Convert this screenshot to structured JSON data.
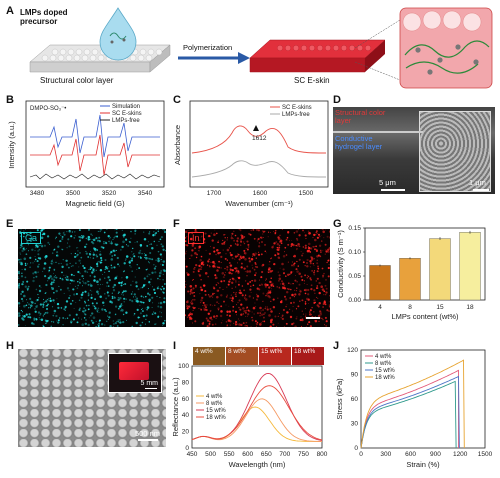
{
  "panels": {
    "A": {
      "letter": "A",
      "precursor_label": "LMPs doped\nprecursor",
      "structural_label": "Structural color layer",
      "arrow_label": "Polymerization",
      "skin_label": "SC E-skin"
    },
    "B": {
      "letter": "B",
      "annotation": "DMPO-SO₃⁻•",
      "ylabel": "Intensity (a.u.)",
      "xlabel": "Magnetic field (G)",
      "legend": [
        "Simulation",
        "SC E-skins",
        "LMPs-free"
      ],
      "xticks": [
        "3480",
        "3500",
        "3520",
        "3540"
      ]
    },
    "C": {
      "letter": "C",
      "ylabel": "Absorbance",
      "xlabel": "Wavenumber (cm⁻¹)",
      "legend": [
        "SC E-skins",
        "LMPs-free"
      ],
      "peak": "1612",
      "xticks": [
        "1700",
        "1600",
        "1500"
      ]
    },
    "D": {
      "letter": "D",
      "layer1": "Structural color\nlayer",
      "layer2": "Conductive\nhydrogel layer",
      "scale1": "5 μm",
      "scale2": "1 μm"
    },
    "E": {
      "letter": "E",
      "element": "Ga"
    },
    "F": {
      "letter": "F",
      "element": "In"
    },
    "G": {
      "letter": "G"
    },
    "H": {
      "letter": "H",
      "scale1": "5 mm",
      "scale2": "500 nm"
    },
    "I": {
      "letter": "I",
      "insets": [
        "4 wt%",
        "8 wt%",
        "15 wt%",
        "18 wt%"
      ],
      "ylabel": "Reflectance (a.u.)",
      "xlabel": "Wavelength (nm)"
    },
    "J": {
      "letter": "J"
    }
  },
  "chart_data": [
    {
      "type": "bar",
      "panel": "G",
      "categories": [
        "4",
        "8",
        "15",
        "18"
      ],
      "values": [
        0.072,
        0.087,
        0.128,
        0.141
      ],
      "errors": [
        0.002,
        0.002,
        0.003,
        0.003
      ],
      "xlabel": "LMPs content (wt%)",
      "ylabel": "Conductivity (S m⁻¹)",
      "ylim": [
        0,
        0.15
      ],
      "yticks": [
        "0.00",
        "0.05",
        "0.10",
        "0.15"
      ],
      "colors": [
        "#c8741a",
        "#e8a13c",
        "#f3d97a",
        "#f6ee9e"
      ]
    },
    {
      "type": "line",
      "panel": "I",
      "xlabel": "Wavelength (nm)",
      "ylabel": "Reflectance (a.u.)",
      "xlim": [
        450,
        800
      ],
      "ylim": [
        0,
        100
      ],
      "xticks": [
        "450",
        "500",
        "550",
        "600",
        "650",
        "700",
        "750",
        "800"
      ],
      "yticks": [
        "0",
        "20",
        "40",
        "60",
        "80",
        "100"
      ],
      "series": [
        {
          "name": "4 wt%",
          "color": "#f5b93c",
          "peak": 620,
          "height": 42,
          "width": 55
        },
        {
          "name": "8 wt%",
          "color": "#f59a64",
          "peak": 638,
          "height": 52,
          "width": 60
        },
        {
          "name": "15 wt%",
          "color": "#d93b56",
          "peak": 655,
          "height": 83,
          "width": 70
        },
        {
          "name": "18 wt%",
          "color": "#e84c3d",
          "peak": 658,
          "height": 68,
          "width": 75
        }
      ]
    },
    {
      "type": "line",
      "panel": "J",
      "xlabel": "Strain (%)",
      "ylabel": "Stress (kPa)",
      "xlim": [
        0,
        1500
      ],
      "ylim": [
        0,
        120
      ],
      "xticks": [
        "0",
        "300",
        "600",
        "900",
        "1200",
        "1500"
      ],
      "yticks": [
        "0",
        "30",
        "60",
        "90",
        "120"
      ],
      "series": [
        {
          "name": "4 wt%",
          "color": "#e35b7a",
          "break": 1180,
          "max": 95
        },
        {
          "name": "8 wt%",
          "color": "#2f9a8c",
          "break": 1150,
          "max": 82
        },
        {
          "name": "15 wt%",
          "color": "#4c74c6",
          "break": 1190,
          "max": 88
        },
        {
          "name": "18 wt%",
          "color": "#e7a431",
          "break": 1250,
          "max": 108
        }
      ]
    }
  ]
}
